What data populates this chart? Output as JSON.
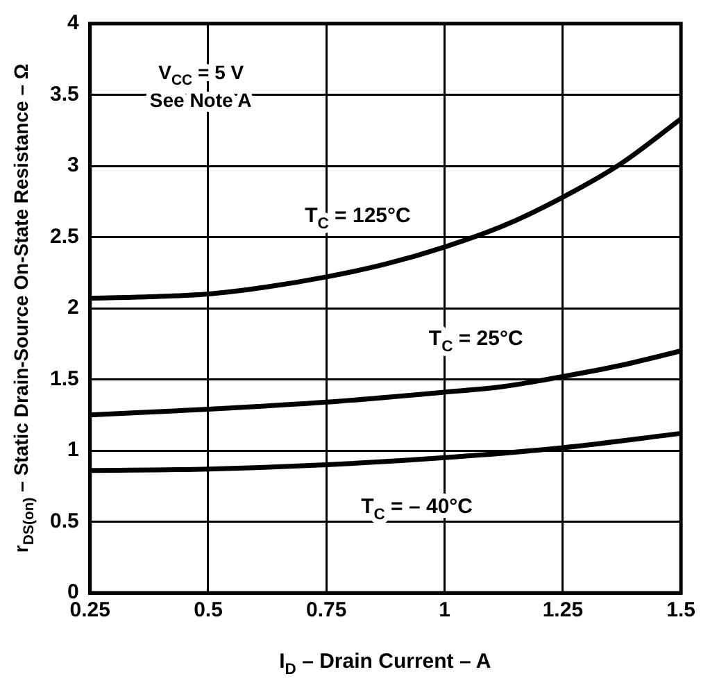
{
  "chart_data": {
    "type": "line",
    "xlabel": "I$_{D}$ – Drain Current – A",
    "ylabel": "r$_{DS(on)}$ – Static Drain-Source On-State Resistance – Ω",
    "annotations": [
      "V$_{CC}$ = 5 V",
      "See Note A"
    ],
    "series": [
      {
        "name": "T$_{C}$ = 125°C",
        "color": "#000000",
        "x": [
          0.25,
          0.375,
          0.5,
          0.625,
          0.75,
          0.875,
          1.0,
          1.125,
          1.25,
          1.375,
          1.5
        ],
        "values": [
          2.07,
          2.08,
          2.1,
          2.15,
          2.22,
          2.31,
          2.43,
          2.58,
          2.78,
          3.02,
          3.33
        ]
      },
      {
        "name": "T$_{C}$ = 25°C",
        "color": "#000000",
        "x": [
          0.25,
          0.5,
          0.75,
          1.0,
          1.125,
          1.25,
          1.375,
          1.5
        ],
        "values": [
          1.25,
          1.29,
          1.34,
          1.41,
          1.45,
          1.52,
          1.6,
          1.7
        ]
      },
      {
        "name": "T$_{C}$ = – 40°C",
        "color": "#000000",
        "x": [
          0.25,
          0.5,
          0.75,
          1.0,
          1.25,
          1.5
        ],
        "values": [
          0.86,
          0.87,
          0.9,
          0.95,
          1.02,
          1.12
        ]
      }
    ],
    "xlim": [
      0.25,
      1.5
    ],
    "xticks": [
      0.25,
      0.5,
      0.75,
      1,
      1.25,
      1.5
    ],
    "ylim": [
      0,
      4
    ],
    "yticks": [
      0,
      0.5,
      1,
      1.5,
      2,
      2.5,
      3,
      3.5,
      4
    ],
    "grid": true,
    "legend": false,
    "marker": "none",
    "line_style": "solid"
  }
}
